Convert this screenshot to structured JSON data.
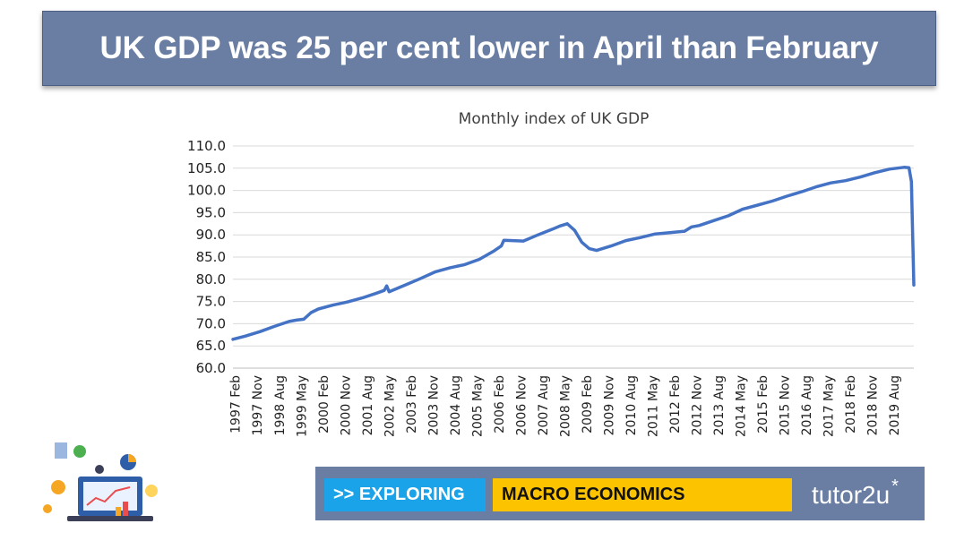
{
  "slide": {
    "title": "UK GDP was 25 per cent lower in April than February"
  },
  "footer": {
    "exploring_label": ">> EXPLORING",
    "topic_label": "MACRO ECONOMICS",
    "brand": "tutor2u",
    "brand_mark": "*"
  },
  "colors": {
    "banner": "#6a7ea3",
    "line": "#4472c4",
    "exploring_bg": "#1aa3e8",
    "topic_bg": "#fcc400"
  },
  "chart_data": {
    "type": "line",
    "title": "Monthly index of UK GDP",
    "xlabel": "",
    "ylabel": "",
    "ylim": [
      60,
      110
    ],
    "ytick_step": 5,
    "grid": true,
    "legend": "none",
    "start": "1997-01",
    "end": "2020-04",
    "x_tick_labels": [
      "1997 Feb",
      "1997 Nov",
      "1998 Aug",
      "1999 May",
      "2000 Feb",
      "2000 Nov",
      "2001 Aug",
      "2002 May",
      "2003 Feb",
      "2003 Nov",
      "2004 Aug",
      "2005 May",
      "2006 Feb",
      "2006 Nov",
      "2007 Aug",
      "2008 May",
      "2009 Feb",
      "2009 Nov",
      "2010 Aug",
      "2011 May",
      "2012 Feb",
      "2012 Nov",
      "2013 Aug",
      "2014 May",
      "2015 Feb",
      "2015 Nov",
      "2016 Aug",
      "2017 May",
      "2018 Feb",
      "2018 Nov",
      "2019 Aug"
    ],
    "series": [
      {
        "name": "",
        "x": [
          "1997 Jan",
          "1997 Jun",
          "1997 Dec",
          "1998 Jun",
          "1998 Dec",
          "1999 Mar",
          "1999 Jun",
          "1999 Sep",
          "1999 Dec",
          "2000 Jun",
          "2000 Dec",
          "2001 Jun",
          "2001 Dec",
          "2002 Mar",
          "2002 Apr",
          "2002 May",
          "2002 Dec",
          "2003 Jun",
          "2003 Dec",
          "2004 Jun",
          "2004 Dec",
          "2005 Jun",
          "2005 Dec",
          "2006 Mar",
          "2006 Apr",
          "2006 Dec",
          "2007 Jun",
          "2007 Dec",
          "2008 Mar",
          "2008 Jun",
          "2008 Sep",
          "2008 Dec",
          "2009 Mar",
          "2009 Jun",
          "2009 Dec",
          "2010 Jun",
          "2010 Dec",
          "2011 Jun",
          "2011 Dec",
          "2012 Jun",
          "2012 Sep",
          "2012 Dec",
          "2013 Jun",
          "2013 Dec",
          "2014 Jun",
          "2014 Dec",
          "2015 Jun",
          "2015 Dec",
          "2016 Jun",
          "2016 Dec",
          "2017 Jun",
          "2017 Dec",
          "2018 Jun",
          "2018 Dec",
          "2019 Jun",
          "2019 Dec",
          "2020 Feb",
          "2020 Mar",
          "2020 Apr"
        ],
        "values": [
          66.5,
          67.2,
          68.2,
          69.4,
          70.5,
          70.8,
          71.0,
          72.5,
          73.3,
          74.2,
          74.9,
          75.8,
          76.9,
          77.5,
          78.5,
          77.2,
          78.8,
          80.2,
          81.7,
          82.6,
          83.3,
          84.5,
          86.4,
          87.5,
          88.8,
          88.6,
          90.0,
          91.3,
          92.0,
          92.5,
          91.0,
          88.3,
          86.9,
          86.5,
          87.5,
          88.7,
          89.4,
          90.2,
          90.5,
          90.8,
          91.8,
          92.1,
          93.2,
          94.3,
          95.8,
          96.7,
          97.6,
          98.7,
          99.7,
          100.8,
          101.7,
          102.2,
          103.0,
          104.0,
          104.8,
          105.2,
          105.1,
          102.0,
          78.7
        ]
      }
    ]
  }
}
